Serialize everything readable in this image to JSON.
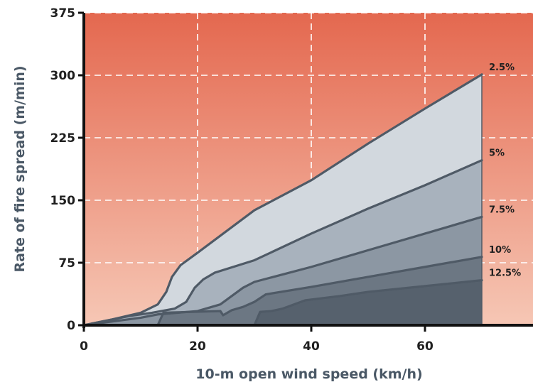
{
  "chart_data": {
    "type": "area",
    "title": "",
    "xlabel": "10-m open wind speed (km/h)",
    "ylabel": "Rate of fire spread (m/min)",
    "xlim": [
      0,
      79
    ],
    "ylim": [
      0,
      375
    ],
    "x_ticks": [
      0,
      20,
      40,
      60
    ],
    "y_ticks": [
      0,
      75,
      150,
      225,
      300,
      375
    ],
    "x_tick_labels": [
      "0",
      "20",
      "40",
      "60"
    ],
    "y_tick_labels": [
      "0",
      "75",
      "150",
      "225",
      "300",
      "375"
    ],
    "grid": true,
    "background_gradient": [
      "#e4684f",
      "#f6c7b5"
    ],
    "series": [
      {
        "name": "2.5%",
        "fill": "#d2d8de",
        "points": [
          [
            0,
            0
          ],
          [
            5,
            7
          ],
          [
            10,
            15
          ],
          [
            13,
            25
          ],
          [
            14.5,
            40
          ],
          [
            15.5,
            58
          ],
          [
            17,
            72
          ],
          [
            20,
            87
          ],
          [
            30,
            138
          ],
          [
            40,
            174
          ],
          [
            50,
            218
          ],
          [
            60,
            260
          ],
          [
            70,
            301
          ]
        ]
      },
      {
        "name": "5%",
        "fill": "#a8b2bd",
        "points": [
          [
            0,
            0
          ],
          [
            8,
            11
          ],
          [
            12,
            15
          ],
          [
            16,
            20
          ],
          [
            18,
            28
          ],
          [
            19.5,
            45
          ],
          [
            21,
            55
          ],
          [
            23,
            63
          ],
          [
            30,
            78
          ],
          [
            40,
            110
          ],
          [
            50,
            140
          ],
          [
            60,
            168
          ],
          [
            70,
            198
          ]
        ]
      },
      {
        "name": "7.5%",
        "fill": "#8c97a3",
        "points": [
          [
            0,
            0
          ],
          [
            10,
            9
          ],
          [
            13,
            13
          ],
          [
            20,
            17
          ],
          [
            24,
            25
          ],
          [
            26,
            35
          ],
          [
            28,
            45
          ],
          [
            30,
            52
          ],
          [
            40,
            70
          ],
          [
            50,
            90
          ],
          [
            60,
            110
          ],
          [
            70,
            130
          ]
        ]
      },
      {
        "name": "10%",
        "fill": "#6c7783",
        "points": [
          [
            13,
            0
          ],
          [
            14,
            15
          ],
          [
            24,
            17
          ],
          [
            24.5,
            12
          ],
          [
            26,
            18
          ],
          [
            28,
            22
          ],
          [
            30,
            28
          ],
          [
            32,
            37
          ],
          [
            40,
            46
          ],
          [
            50,
            58
          ],
          [
            60,
            70
          ],
          [
            70,
            82
          ]
        ]
      },
      {
        "name": "12.5%",
        "fill": "#56616d",
        "points": [
          [
            30,
            0
          ],
          [
            31,
            16
          ],
          [
            33,
            17
          ],
          [
            35,
            20
          ],
          [
            37,
            25
          ],
          [
            39,
            30
          ],
          [
            45,
            35
          ],
          [
            50,
            40
          ],
          [
            60,
            47
          ],
          [
            70,
            54
          ]
        ]
      }
    ]
  }
}
